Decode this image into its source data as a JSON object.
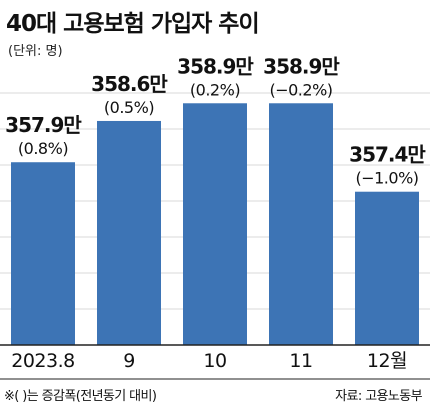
{
  "title": "40대 고용보험 가입자 추이",
  "unit_note": "(단위: 명)",
  "footnote": "※(  )는 증감폭(전년동기 대비)",
  "source": "자료: 고용노동부",
  "colors": {
    "bar": "#3d74b5",
    "axis": "#222222",
    "grid": "#d8d8d8"
  },
  "chart_data": {
    "type": "bar",
    "categories": [
      "2023.8",
      "9",
      "10",
      "11",
      "12월"
    ],
    "values": [
      357.9,
      358.6,
      358.9,
      358.9,
      357.4
    ],
    "value_labels": [
      "357.9만",
      "358.6만",
      "358.9만",
      "358.9만",
      "357.4만"
    ],
    "change_labels": [
      "(0.8%)",
      "(0.5%)",
      "(0.2%)",
      "(−0.2%)",
      "(−1.0%)"
    ],
    "title": "40대 고용보험 가입자 추이",
    "ylabel": "",
    "ylim": [
      354.8,
      359.6
    ],
    "grid": true
  }
}
